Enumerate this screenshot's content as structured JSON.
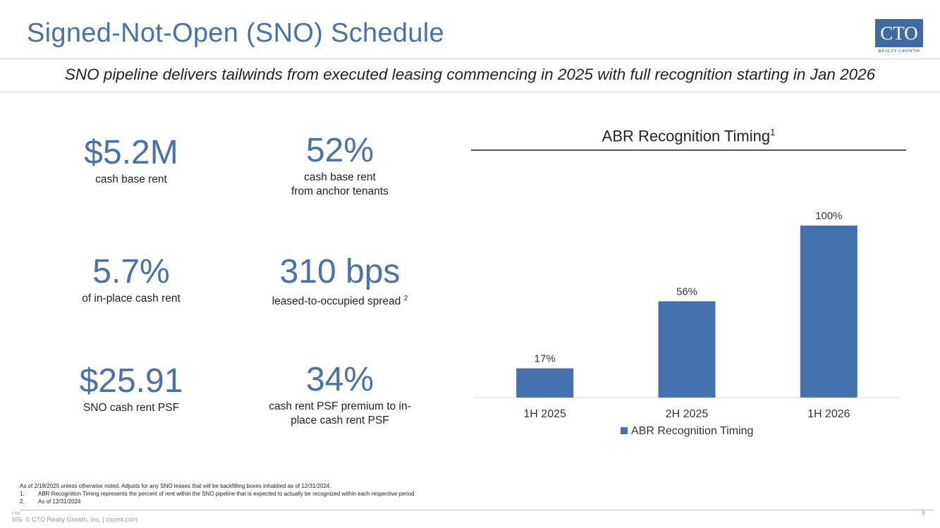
{
  "header": {
    "title": "Signed-Not-Open (SNO) Schedule",
    "subtitle": "SNO pipeline delivers tailwinds from executed leasing commencing in 2025 with full recognition starting in Jan 2026",
    "logo_text": "CTO",
    "logo_subtext": "REALTY GROWTH"
  },
  "stats": [
    {
      "value": "$5.2M",
      "caption": "cash base rent"
    },
    {
      "value": "52%",
      "caption_line1": "cash base rent",
      "caption_line2": "from anchor tenants"
    },
    {
      "value": "5.7%",
      "caption": "of in-place cash rent"
    },
    {
      "value": "310 bps",
      "caption": "leased-to-occupied spread",
      "footnote_ref": "2"
    },
    {
      "value": "$25.91",
      "caption": "SNO cash rent PSF"
    },
    {
      "value": "34%",
      "caption_line1": "cash rent PSF premium to in-",
      "caption_line2": "place cash rent PSF"
    }
  ],
  "chart_data": {
    "type": "bar",
    "title": "ABR Recognition Timing",
    "title_footnote": "1",
    "categories": [
      "1H 2025",
      "2H 2025",
      "1H 2026"
    ],
    "series": [
      {
        "name": "ABR Recognition Timing",
        "values": [
          17,
          56,
          100
        ],
        "color": "#4472b0"
      }
    ],
    "data_labels": [
      "17%",
      "56%",
      "100%"
    ],
    "ylim": [
      0,
      100
    ],
    "grid": false,
    "legend_position": "bottom"
  },
  "footnotes": {
    "intro": "As of 2/18/2025 unless otherwise noted. Adjusts for any SNO leases that will be backfilling boxes inhabited as of 12/31/2024.",
    "items": [
      {
        "num": "1.",
        "text": "ABR Recognition Timing represents the percent of rent within the SNO pipeline that is expected to actually be recognized within each respective period"
      },
      {
        "num": "2.",
        "text": "As of 12/31/2024"
      }
    ]
  },
  "footer": {
    "logo_line1": "CTO",
    "logo_line2": "NYSE",
    "copyright": "© CTO Realty Growth, Inc. | ctoreit.com",
    "page_number": "9"
  }
}
